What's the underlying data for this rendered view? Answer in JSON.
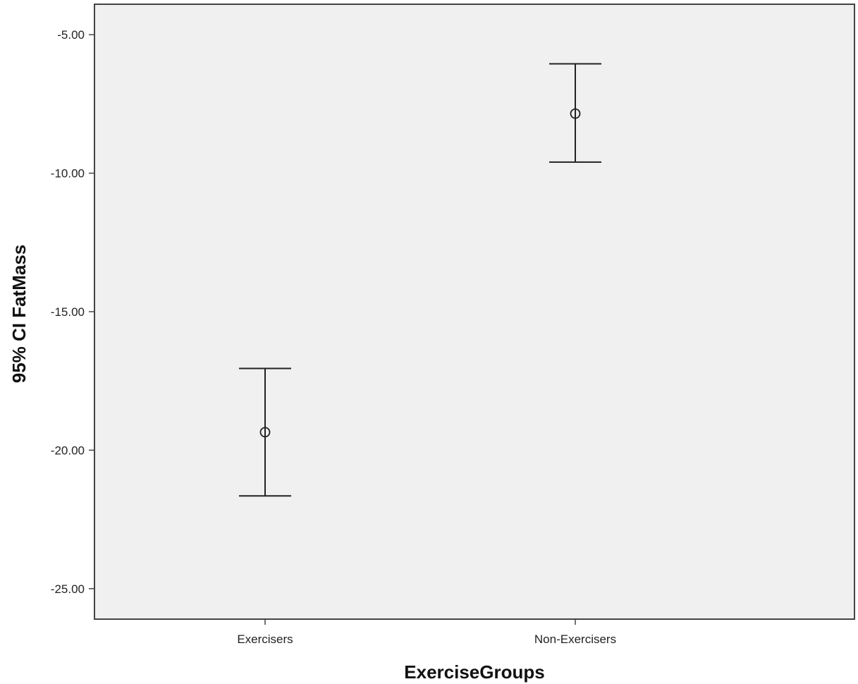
{
  "chart_data": {
    "type": "errorbar",
    "xlabel": "ExerciseGroups",
    "ylabel": "95% CI FatMass",
    "categories": [
      "Exercisers",
      "Non-Exercisers"
    ],
    "means": [
      -19.35,
      -7.85
    ],
    "ci_lower": [
      -21.65,
      -9.6
    ],
    "ci_upper": [
      -17.05,
      -6.05
    ],
    "ylim": [
      -26.1,
      -3.9
    ],
    "yticks": [
      -5,
      -10,
      -15,
      -20,
      -25
    ],
    "ytick_labels": [
      "-5.00",
      "-10.00",
      "-15.00",
      "-20.00",
      "-25.00"
    ],
    "grid": false,
    "legend": "none",
    "colors": {
      "plot_background": "#f0f0f0",
      "frame": "#444444",
      "marks": "#222222"
    }
  }
}
